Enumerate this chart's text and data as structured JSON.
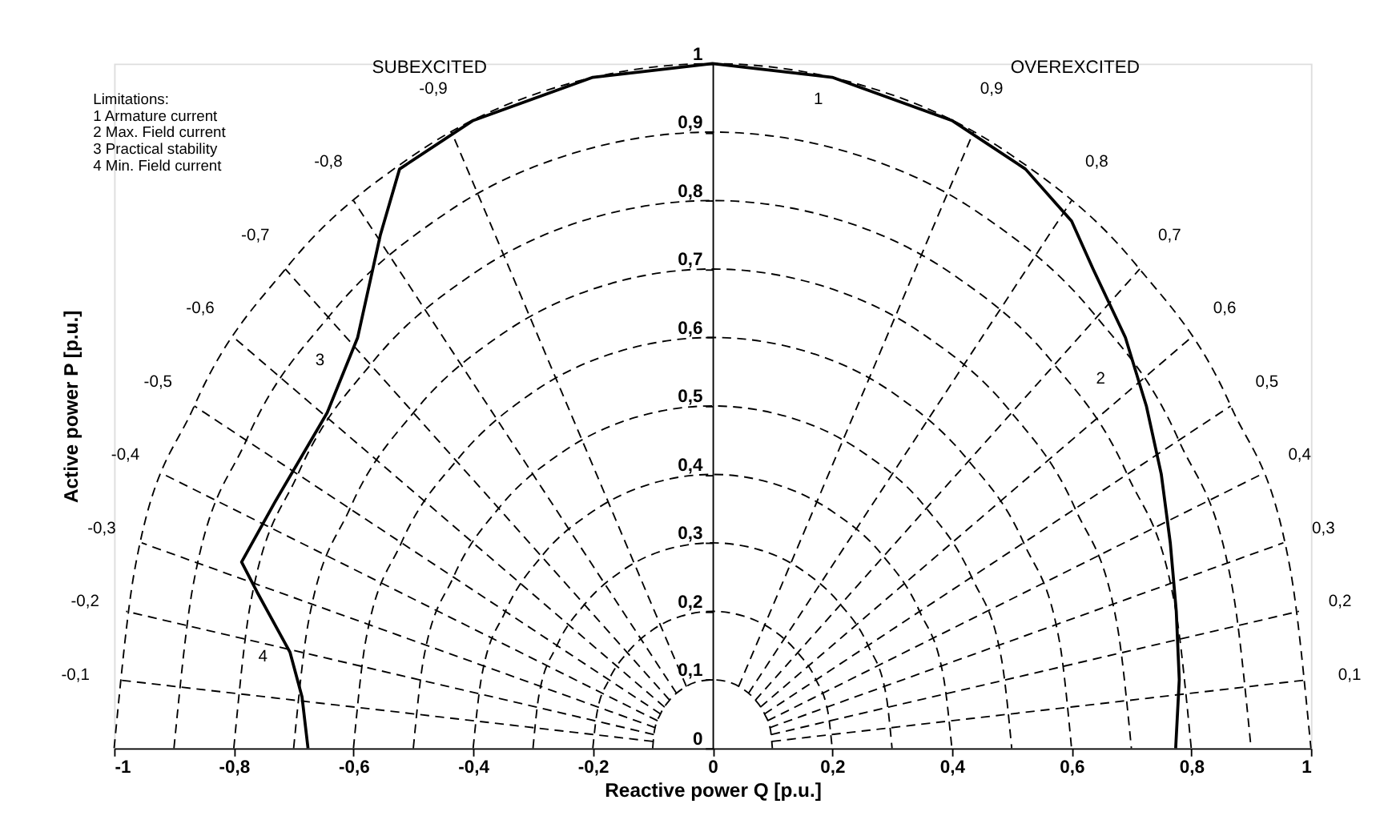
{
  "chart_data": {
    "type": "line",
    "xlabel": "Reactive power Q [p.u.]",
    "ylabel": "Active power P [p.u.]",
    "xlim": [
      -1,
      1
    ],
    "ylim": [
      0,
      1
    ],
    "xticks": [
      -1,
      {
        "value": -0.8,
        "label": "-0,8"
      },
      {
        "value": -0.6,
        "label": "-0,6"
      },
      {
        "value": -0.4,
        "label": "-0,4"
      },
      {
        "value": -0.2,
        "label": "-0,2"
      },
      0,
      {
        "value": 0.2,
        "label": "0,2"
      },
      {
        "value": 0.4,
        "label": "0,4"
      },
      {
        "value": 0.6,
        "label": "0,6"
      },
      {
        "value": 0.8,
        "label": "0,8"
      },
      1
    ],
    "yticks": [
      0,
      {
        "value": 0.1,
        "label": "0,1"
      },
      {
        "value": 0.2,
        "label": "0,2"
      },
      {
        "value": 0.3,
        "label": "0,3"
      },
      {
        "value": 0.4,
        "label": "0,4"
      },
      {
        "value": 0.5,
        "label": "0,5"
      },
      {
        "value": 0.6,
        "label": "0,6"
      },
      {
        "value": 0.7,
        "label": "0,7"
      },
      {
        "value": 0.8,
        "label": "0,8"
      },
      {
        "value": 0.9,
        "label": "0,9"
      },
      1
    ],
    "grid": false,
    "marker": "none",
    "annotations": [
      "SUBEXCITED",
      "OVEREXCITED",
      "Limitations:",
      "1 Armature current",
      "2 Max. Field current",
      "3 Practical stability",
      "4 Min. Field current",
      "1",
      "2",
      "3",
      "4"
    ],
    "series": [
      {
        "color": "#000000",
        "line_style": "dashed",
        "x": [
          -0.1,
          -0.097,
          -0.087,
          -0.071,
          -0.05,
          -0.026,
          0,
          0.026,
          0.05,
          0.071,
          0.087,
          0.097,
          0.1
        ],
        "values": [
          0,
          0.026,
          0.05,
          0.071,
          0.087,
          0.097,
          0.1,
          0.097,
          0.087,
          0.071,
          0.05,
          0.026,
          0
        ]
      },
      {
        "color": "#000000",
        "line_style": "dashed",
        "x": [
          -0.2,
          -0.193,
          -0.173,
          -0.141,
          -0.1,
          -0.052,
          0,
          0.052,
          0.1,
          0.141,
          0.173,
          0.193,
          0.2
        ],
        "values": [
          0,
          0.052,
          0.1,
          0.141,
          0.173,
          0.193,
          0.2,
          0.193,
          0.173,
          0.141,
          0.1,
          0.052,
          0
        ]
      },
      {
        "color": "#000000",
        "line_style": "dashed",
        "x": [
          -0.3,
          -0.29,
          -0.26,
          -0.212,
          -0.15,
          -0.078,
          0,
          0.078,
          0.15,
          0.212,
          0.26,
          0.29,
          0.3
        ],
        "values": [
          0,
          0.078,
          0.15,
          0.212,
          0.26,
          0.29,
          0.3,
          0.29,
          0.26,
          0.212,
          0.15,
          0.078,
          0
        ]
      },
      {
        "color": "#000000",
        "line_style": "dashed",
        "x": [
          -0.4,
          -0.386,
          -0.346,
          -0.283,
          -0.2,
          -0.104,
          0,
          0.104,
          0.2,
          0.283,
          0.346,
          0.386,
          0.4
        ],
        "values": [
          0,
          0.104,
          0.2,
          0.283,
          0.346,
          0.386,
          0.4,
          0.386,
          0.346,
          0.283,
          0.2,
          0.104,
          0
        ]
      },
      {
        "color": "#000000",
        "line_style": "dashed",
        "x": [
          -0.5,
          -0.483,
          -0.433,
          -0.354,
          -0.25,
          -0.13,
          0,
          0.13,
          0.25,
          0.354,
          0.433,
          0.483,
          0.5
        ],
        "values": [
          0,
          0.13,
          0.25,
          0.354,
          0.433,
          0.483,
          0.5,
          0.483,
          0.433,
          0.354,
          0.25,
          0.13,
          0
        ]
      },
      {
        "color": "#000000",
        "line_style": "dashed",
        "x": [
          -0.6,
          -0.58,
          -0.52,
          -0.424,
          -0.3,
          -0.155,
          0,
          0.155,
          0.3,
          0.424,
          0.52,
          0.58,
          0.6
        ],
        "values": [
          0,
          0.155,
          0.3,
          0.424,
          0.52,
          0.58,
          0.6,
          0.58,
          0.52,
          0.424,
          0.3,
          0.155,
          0
        ]
      },
      {
        "color": "#000000",
        "line_style": "dashed",
        "x": [
          -0.7,
          -0.676,
          -0.606,
          -0.495,
          -0.35,
          -0.181,
          0,
          0.181,
          0.35,
          0.495,
          0.606,
          0.676,
          0.7
        ],
        "values": [
          0,
          0.181,
          0.35,
          0.495,
          0.606,
          0.676,
          0.7,
          0.676,
          0.606,
          0.495,
          0.35,
          0.181,
          0
        ]
      },
      {
        "color": "#000000",
        "line_style": "dashed",
        "x": [
          -0.8,
          -0.773,
          -0.693,
          -0.566,
          -0.4,
          -0.207,
          0,
          0.207,
          0.4,
          0.566,
          0.693,
          0.773,
          0.8
        ],
        "values": [
          0,
          0.207,
          0.4,
          0.566,
          0.693,
          0.773,
          0.8,
          0.773,
          0.693,
          0.566,
          0.4,
          0.207,
          0
        ]
      },
      {
        "color": "#000000",
        "line_style": "dashed",
        "x": [
          -0.9,
          -0.869,
          -0.779,
          -0.636,
          -0.45,
          -0.233,
          0,
          0.233,
          0.45,
          0.636,
          0.779,
          0.869,
          0.9
        ],
        "values": [
          0,
          0.233,
          0.45,
          0.636,
          0.779,
          0.869,
          0.9,
          0.869,
          0.779,
          0.636,
          0.45,
          0.233,
          0
        ]
      },
      {
        "color": "#000000",
        "line_style": "dashed",
        "x": [
          -1,
          -0.966,
          -0.866,
          -0.707,
          -0.5,
          -0.259,
          0,
          0.259,
          0.5,
          0.707,
          0.866,
          0.966,
          1
        ],
        "values": [
          0,
          0.259,
          0.5,
          0.707,
          0.866,
          0.966,
          1,
          0.966,
          0.866,
          0.707,
          0.5,
          0.259,
          0
        ]
      },
      {
        "name": "0,1",
        "color": "#000000",
        "line_style": "dashed",
        "x": [
          0.0995,
          0.995
        ],
        "values": [
          0.01,
          0.1
        ]
      },
      {
        "name": "0,2",
        "color": "#000000",
        "line_style": "dashed",
        "x": [
          0.098,
          0.98
        ],
        "values": [
          0.02,
          0.2
        ]
      },
      {
        "name": "0,3",
        "color": "#000000",
        "line_style": "dashed",
        "x": [
          0.0954,
          0.954
        ],
        "values": [
          0.03,
          0.3
        ]
      },
      {
        "name": "0,4",
        "color": "#000000",
        "line_style": "dashed",
        "x": [
          0.0917,
          0.917
        ],
        "values": [
          0.04,
          0.4
        ]
      },
      {
        "name": "0,5",
        "color": "#000000",
        "line_style": "dashed",
        "x": [
          0.0866,
          0.866
        ],
        "values": [
          0.05,
          0.5
        ]
      },
      {
        "name": "0,6",
        "color": "#000000",
        "line_style": "dashed",
        "x": [
          0.08,
          0.8
        ],
        "values": [
          0.06,
          0.6
        ]
      },
      {
        "name": "0,7",
        "color": "#000000",
        "line_style": "dashed",
        "x": [
          0.0714,
          0.714
        ],
        "values": [
          0.07,
          0.7
        ]
      },
      {
        "name": "0,8",
        "color": "#000000",
        "line_style": "dashed",
        "x": [
          0.06,
          0.6
        ],
        "values": [
          0.08,
          0.8
        ]
      },
      {
        "name": "0,9",
        "color": "#000000",
        "line_style": "dashed",
        "x": [
          0.0436,
          0.436
        ],
        "values": [
          0.09,
          0.9
        ]
      },
      {
        "name": "-0,1",
        "color": "#000000",
        "line_style": "dashed",
        "x": [
          -0.0995,
          -0.995
        ],
        "values": [
          0.01,
          0.1
        ]
      },
      {
        "name": "-0,2",
        "color": "#000000",
        "line_style": "dashed",
        "x": [
          -0.098,
          -0.98
        ],
        "values": [
          0.02,
          0.2
        ]
      },
      {
        "name": "-0,3",
        "color": "#000000",
        "line_style": "dashed",
        "x": [
          -0.0954,
          -0.954
        ],
        "values": [
          0.03,
          0.3
        ]
      },
      {
        "name": "-0,4",
        "color": "#000000",
        "line_style": "dashed",
        "x": [
          -0.0917,
          -0.917
        ],
        "values": [
          0.04,
          0.4
        ]
      },
      {
        "name": "-0,5",
        "color": "#000000",
        "line_style": "dashed",
        "x": [
          -0.0866,
          -0.866
        ],
        "values": [
          0.05,
          0.5
        ]
      },
      {
        "name": "-0,6",
        "color": "#000000",
        "line_style": "dashed",
        "x": [
          -0.08,
          -0.8
        ],
        "values": [
          0.06,
          0.6
        ]
      },
      {
        "name": "-0,7",
        "color": "#000000",
        "line_style": "dashed",
        "x": [
          -0.0714,
          -0.714
        ],
        "values": [
          0.07,
          0.7
        ]
      },
      {
        "name": "-0,8",
        "color": "#000000",
        "line_style": "dashed",
        "x": [
          -0.06,
          -0.6
        ],
        "values": [
          0.08,
          0.8
        ]
      },
      {
        "name": "-0,9",
        "color": "#000000",
        "line_style": "dashed",
        "x": [
          -0.0436,
          -0.436
        ],
        "values": [
          0.09,
          0.9
        ]
      },
      {
        "color": "#000000",
        "line_style": "solid",
        "x": [
          -0.676,
          -0.686,
          -0.706,
          -0.761,
          -0.787,
          -0.731,
          -0.644,
          -0.593,
          -0.555,
          -0.523,
          -0.4,
          -0.2,
          0,
          0.2,
          0.4,
          0.523,
          0.6,
          0.636,
          0.69,
          0.725,
          0.75,
          0.765,
          0.775,
          0.78,
          0.774
        ],
        "values": [
          0,
          0.075,
          0.14,
          0.228,
          0.272,
          0.36,
          0.49,
          0.6,
          0.75,
          0.846,
          0.917,
          0.98,
          1,
          0.98,
          0.917,
          0.846,
          0.77,
          0.7,
          0.6,
          0.5,
          0.4,
          0.3,
          0.2,
          0.1,
          0
        ]
      }
    ]
  }
}
